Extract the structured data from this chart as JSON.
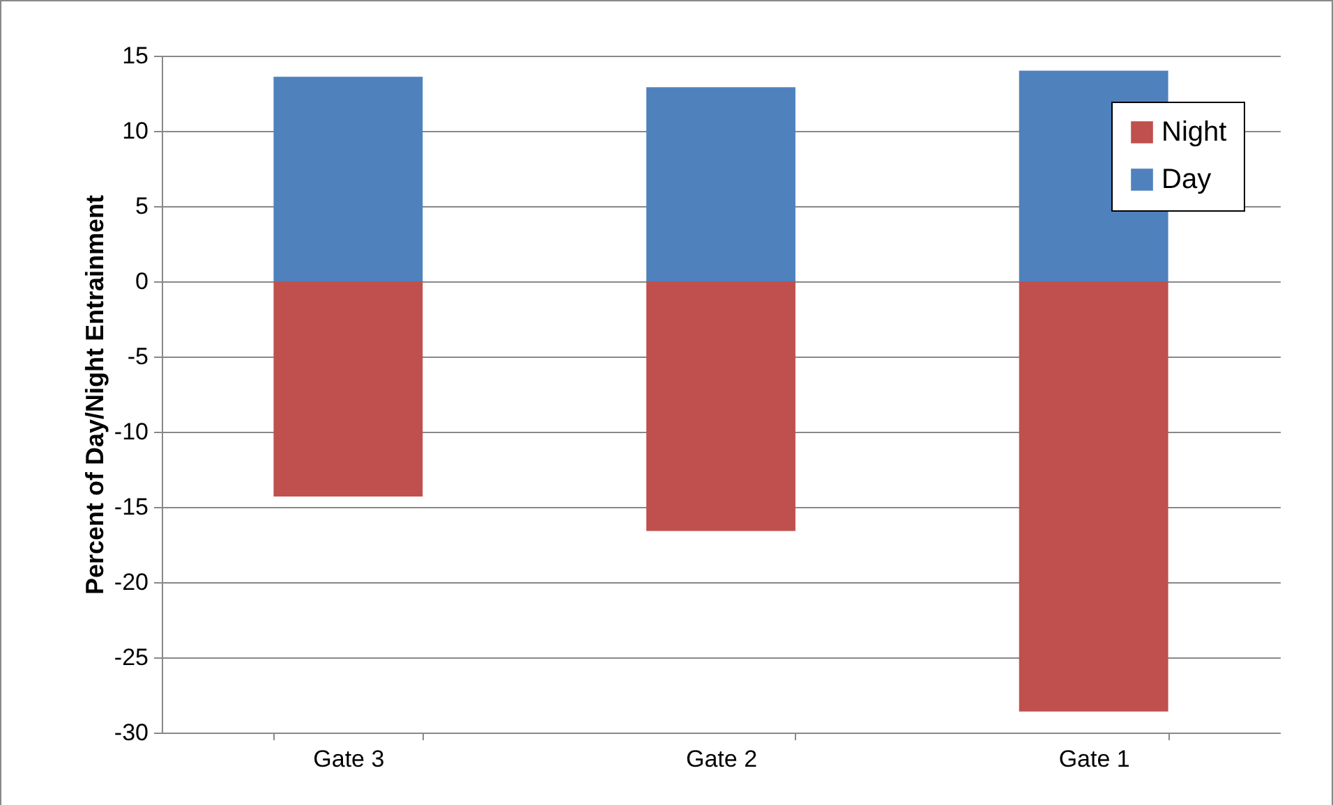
{
  "chart_data": {
    "type": "bar",
    "ylabel": "Percent of Day/Night Entrainment",
    "categories": [
      "Gate 3",
      "Gate 2",
      "Gate 1"
    ],
    "series": [
      {
        "name": "Night",
        "color": "#c0504d",
        "values": [
          -14.3,
          -16.6,
          -28.6
        ]
      },
      {
        "name": "Day",
        "color": "#4f81bd",
        "values": [
          13.6,
          12.9,
          14.0
        ]
      }
    ],
    "stacked": true,
    "ylim": [
      -30,
      15
    ],
    "yticks": [
      -30,
      -25,
      -20,
      -15,
      -10,
      -5,
      0,
      5,
      10,
      15
    ],
    "grid": "y",
    "legend": "top right"
  }
}
